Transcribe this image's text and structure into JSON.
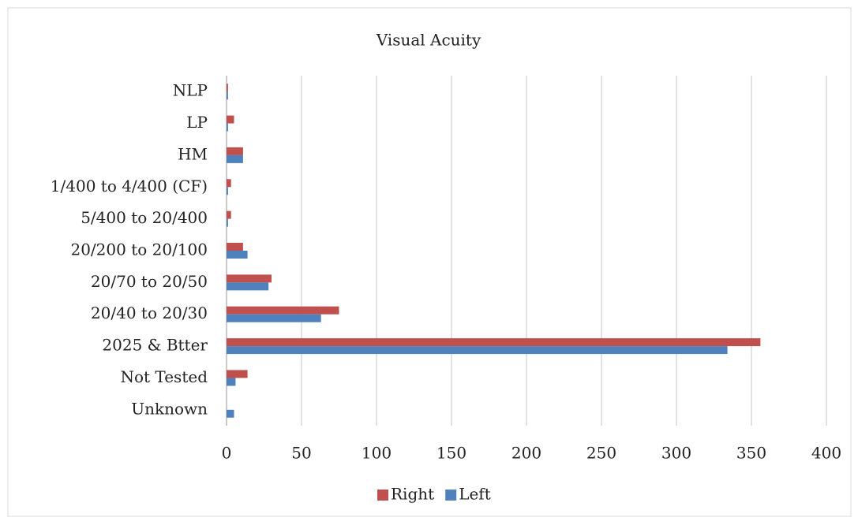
{
  "chart_data": {
    "type": "barh",
    "title": "Visual Acuity",
    "categories": [
      "NLP",
      "LP",
      "HM",
      "1/400 to 4/400 (CF)",
      "5/400 to 20/400",
      "20/200 to 20/100",
      "20/70 to 20/50",
      "20/40 to 20/30",
      "2025 & Btter",
      "Not Tested",
      "Unknown"
    ],
    "series": [
      {
        "name": "Right",
        "color": "#c0504d",
        "values": [
          1,
          5,
          11,
          3,
          3,
          11,
          30,
          75,
          356,
          14,
          0
        ]
      },
      {
        "name": "Left",
        "color": "#4f81bd",
        "values": [
          1,
          1,
          11,
          1,
          1,
          14,
          28,
          63,
          334,
          6,
          5
        ]
      }
    ],
    "xlim": [
      0,
      400
    ],
    "xticks": [
      0,
      50,
      100,
      150,
      200,
      250,
      300,
      350,
      400
    ],
    "grid": true,
    "legend": "bottom"
  }
}
